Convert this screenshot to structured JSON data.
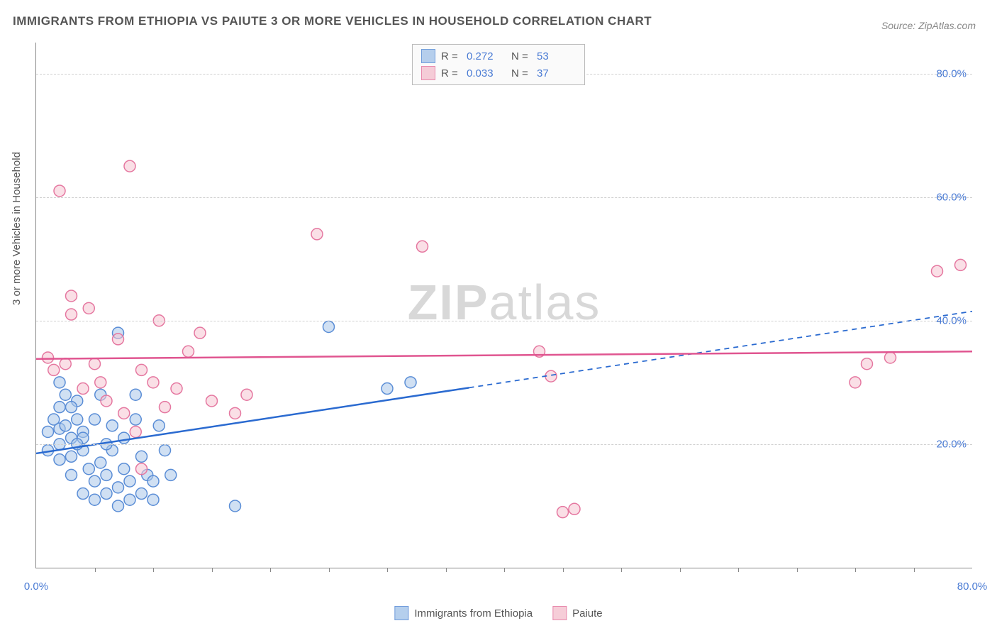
{
  "title": "IMMIGRANTS FROM ETHIOPIA VS PAIUTE 3 OR MORE VEHICLES IN HOUSEHOLD CORRELATION CHART",
  "source": "Source: ZipAtlas.com",
  "y_axis_label": "3 or more Vehicles in Household",
  "watermark_a": "ZIP",
  "watermark_b": "atlas",
  "chart": {
    "type": "scatter",
    "xlim": [
      0,
      80
    ],
    "ylim": [
      0,
      85
    ],
    "y_ticks": [
      20,
      40,
      60,
      80
    ],
    "y_tick_labels": [
      "20.0%",
      "40.0%",
      "60.0%",
      "80.0%"
    ],
    "x_tick_labels": [
      "0.0%",
      "80.0%"
    ],
    "x_tick_positions": [
      0,
      80
    ],
    "x_minor_ticks": [
      5,
      10,
      15,
      20,
      25,
      30,
      35,
      40,
      45,
      50,
      55,
      60,
      65,
      70,
      75
    ],
    "grid_color": "#d0d0d0",
    "axis_color": "#888888",
    "background": "#ffffff",
    "label_color": "#4a7bd4",
    "marker_radius": 8,
    "marker_opacity": 0.55,
    "series": [
      {
        "name": "Immigrants from Ethiopia",
        "fill": "#a9c7ea",
        "stroke": "#5a8dd6",
        "line_color": "#2a6ad0",
        "R": "0.272",
        "N": "53",
        "trend": {
          "x1": 0,
          "y1": 18.5,
          "x2": 80,
          "y2": 41.5,
          "solid_until_x": 37
        },
        "points": [
          [
            1,
            22
          ],
          [
            1,
            19
          ],
          [
            1.5,
            24
          ],
          [
            2,
            22.5
          ],
          [
            2,
            20
          ],
          [
            2,
            17.5
          ],
          [
            2,
            26
          ],
          [
            2.5,
            28
          ],
          [
            2.5,
            23
          ],
          [
            3,
            21
          ],
          [
            3,
            18
          ],
          [
            3,
            15
          ],
          [
            3.5,
            27
          ],
          [
            3.5,
            24
          ],
          [
            4,
            22
          ],
          [
            4,
            19
          ],
          [
            4,
            12
          ],
          [
            4.5,
            16
          ],
          [
            5,
            14
          ],
          [
            5,
            11
          ],
          [
            5.5,
            17
          ],
          [
            5.5,
            28
          ],
          [
            6,
            15
          ],
          [
            6,
            12
          ],
          [
            6.5,
            19
          ],
          [
            7,
            13
          ],
          [
            7,
            10
          ],
          [
            7.5,
            21
          ],
          [
            7.5,
            16
          ],
          [
            8,
            14
          ],
          [
            8,
            11
          ],
          [
            8.5,
            28
          ],
          [
            9,
            18
          ],
          [
            9,
            12
          ],
          [
            9.5,
            15
          ],
          [
            10,
            11
          ],
          [
            10,
            14
          ],
          [
            7,
            38
          ],
          [
            8.5,
            24
          ],
          [
            10.5,
            23
          ],
          [
            11,
            19
          ],
          [
            11.5,
            15
          ],
          [
            17,
            10
          ],
          [
            6,
            20
          ],
          [
            6.5,
            23
          ],
          [
            3,
            26
          ],
          [
            2,
            30
          ],
          [
            25,
            39
          ],
          [
            30,
            29
          ],
          [
            32,
            30
          ],
          [
            4,
            21
          ],
          [
            5,
            24
          ],
          [
            3.5,
            20
          ]
        ]
      },
      {
        "name": "Paiute",
        "fill": "#f5c5d2",
        "stroke": "#e577a0",
        "line_color": "#e05590",
        "R": "0.033",
        "N": "37",
        "trend": {
          "x1": 0,
          "y1": 33.8,
          "x2": 80,
          "y2": 35.0,
          "solid_until_x": 80
        },
        "points": [
          [
            1,
            34
          ],
          [
            1.5,
            32
          ],
          [
            2,
            61
          ],
          [
            2.5,
            33
          ],
          [
            3,
            44
          ],
          [
            3,
            41
          ],
          [
            4,
            29
          ],
          [
            4.5,
            42
          ],
          [
            5,
            33
          ],
          [
            5.5,
            30
          ],
          [
            6,
            27
          ],
          [
            7,
            37
          ],
          [
            7.5,
            25
          ],
          [
            8,
            65
          ],
          [
            8.5,
            22
          ],
          [
            9,
            32
          ],
          [
            10,
            30
          ],
          [
            10.5,
            40
          ],
          [
            11,
            26
          ],
          [
            12,
            29
          ],
          [
            13,
            35
          ],
          [
            14,
            38
          ],
          [
            15,
            27
          ],
          [
            17,
            25
          ],
          [
            18,
            28
          ],
          [
            24,
            54
          ],
          [
            33,
            52
          ],
          [
            9,
            16
          ],
          [
            43,
            35
          ],
          [
            44,
            31
          ],
          [
            45,
            9
          ],
          [
            46,
            9.5
          ],
          [
            70,
            30
          ],
          [
            71,
            33
          ],
          [
            73,
            34
          ],
          [
            77,
            48
          ],
          [
            79,
            49
          ]
        ]
      }
    ]
  },
  "legend_bottom": [
    {
      "label": "Immigrants from Ethiopia",
      "fill": "#a9c7ea",
      "stroke": "#5a8dd6"
    },
    {
      "label": "Paiute",
      "fill": "#f5c5d2",
      "stroke": "#e577a0"
    }
  ],
  "legend_top_labels": {
    "R": "R  =",
    "N": "N  ="
  }
}
